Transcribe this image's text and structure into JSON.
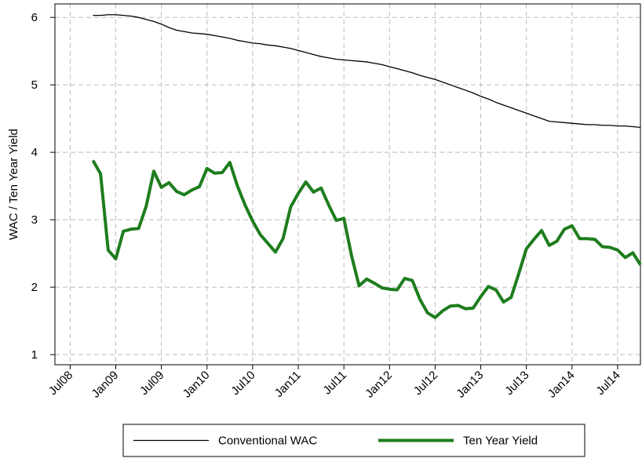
{
  "chart_data": {
    "type": "line",
    "y_label": "WAC / Ten Year Yield",
    "x": [
      "2008-10",
      "2008-11",
      "2008-12",
      "2009-01",
      "2009-02",
      "2009-03",
      "2009-04",
      "2009-05",
      "2009-06",
      "2009-07",
      "2009-08",
      "2009-09",
      "2009-10",
      "2009-11",
      "2009-12",
      "2010-01",
      "2010-02",
      "2010-03",
      "2010-04",
      "2010-05",
      "2010-06",
      "2010-07",
      "2010-08",
      "2010-09",
      "2010-10",
      "2010-11",
      "2010-12",
      "2011-01",
      "2011-02",
      "2011-03",
      "2011-04",
      "2011-05",
      "2011-06",
      "2011-07",
      "2011-08",
      "2011-09",
      "2011-10",
      "2011-11",
      "2011-12",
      "2012-01",
      "2012-02",
      "2012-03",
      "2012-04",
      "2012-05",
      "2012-06",
      "2012-07",
      "2012-08",
      "2012-09",
      "2012-10",
      "2012-11",
      "2012-12",
      "2013-01",
      "2013-02",
      "2013-03",
      "2013-04",
      "2013-05",
      "2013-06",
      "2013-07",
      "2013-08",
      "2013-09",
      "2013-10",
      "2013-11",
      "2013-12",
      "2014-01",
      "2014-02",
      "2014-03",
      "2014-04",
      "2014-05",
      "2014-06",
      "2014-07",
      "2014-08",
      "2014-09",
      "2014-10"
    ],
    "series": [
      {
        "name": "Conventional WAC",
        "color": "#000000",
        "width": 1.3,
        "values": [
          6.03,
          6.03,
          6.04,
          6.04,
          6.03,
          6.02,
          6.0,
          5.97,
          5.94,
          5.9,
          5.85,
          5.81,
          5.79,
          5.77,
          5.76,
          5.75,
          5.73,
          5.71,
          5.69,
          5.66,
          5.64,
          5.62,
          5.61,
          5.59,
          5.58,
          5.56,
          5.54,
          5.51,
          5.48,
          5.45,
          5.42,
          5.4,
          5.38,
          5.37,
          5.36,
          5.35,
          5.34,
          5.32,
          5.3,
          5.27,
          5.24,
          5.21,
          5.18,
          5.14,
          5.11,
          5.08,
          5.04,
          5.0,
          4.96,
          4.92,
          4.88,
          4.83,
          4.79,
          4.74,
          4.7,
          4.66,
          4.62,
          4.58,
          4.54,
          4.5,
          4.46,
          4.45,
          4.44,
          4.43,
          4.42,
          4.41,
          4.41,
          4.4,
          4.4,
          4.39,
          4.39,
          4.38,
          4.37
        ]
      },
      {
        "name": "Ten Year Yield",
        "color": "#1e7d1e",
        "width": 4,
        "values": [
          3.88,
          3.68,
          2.55,
          2.42,
          2.83,
          2.86,
          2.87,
          3.2,
          3.72,
          3.48,
          3.55,
          3.42,
          3.37,
          3.44,
          3.49,
          3.76,
          3.69,
          3.7,
          3.85,
          3.5,
          3.22,
          2.98,
          2.78,
          2.65,
          2.52,
          2.72,
          3.19,
          3.39,
          3.56,
          3.41,
          3.47,
          3.22,
          2.99,
          3.02,
          2.47,
          2.02,
          2.12,
          2.06,
          1.99,
          1.97,
          1.96,
          2.13,
          2.1,
          1.82,
          1.62,
          1.55,
          1.65,
          1.72,
          1.73,
          1.68,
          1.69,
          1.86,
          2.01,
          1.96,
          1.78,
          1.85,
          2.2,
          2.57,
          2.71,
          2.84,
          2.62,
          2.68,
          2.86,
          2.91,
          2.72,
          2.72,
          2.71,
          2.6,
          2.59,
          2.55,
          2.44,
          2.51,
          2.33
        ]
      }
    ],
    "xlim": [
      "2008-05",
      "2014-10"
    ],
    "xticks": [
      {
        "value": "2008-07",
        "label": "Jul08"
      },
      {
        "value": "2009-01",
        "label": "Jan09"
      },
      {
        "value": "2009-07",
        "label": "Jul09"
      },
      {
        "value": "2010-01",
        "label": "Jan10"
      },
      {
        "value": "2010-07",
        "label": "Jul10"
      },
      {
        "value": "2011-01",
        "label": "Jan11"
      },
      {
        "value": "2011-07",
        "label": "Jul11"
      },
      {
        "value": "2012-01",
        "label": "Jan12"
      },
      {
        "value": "2012-07",
        "label": "Jul12"
      },
      {
        "value": "2013-01",
        "label": "Jan13"
      },
      {
        "value": "2013-07",
        "label": "Jul13"
      },
      {
        "value": "2014-01",
        "label": "Jan14"
      },
      {
        "value": "2014-07",
        "label": "Jul14"
      }
    ],
    "ylim": [
      0.85,
      6.2
    ],
    "yticks": [
      1,
      2,
      3,
      4,
      5,
      6
    ],
    "grid": true,
    "legend": "bottom"
  }
}
